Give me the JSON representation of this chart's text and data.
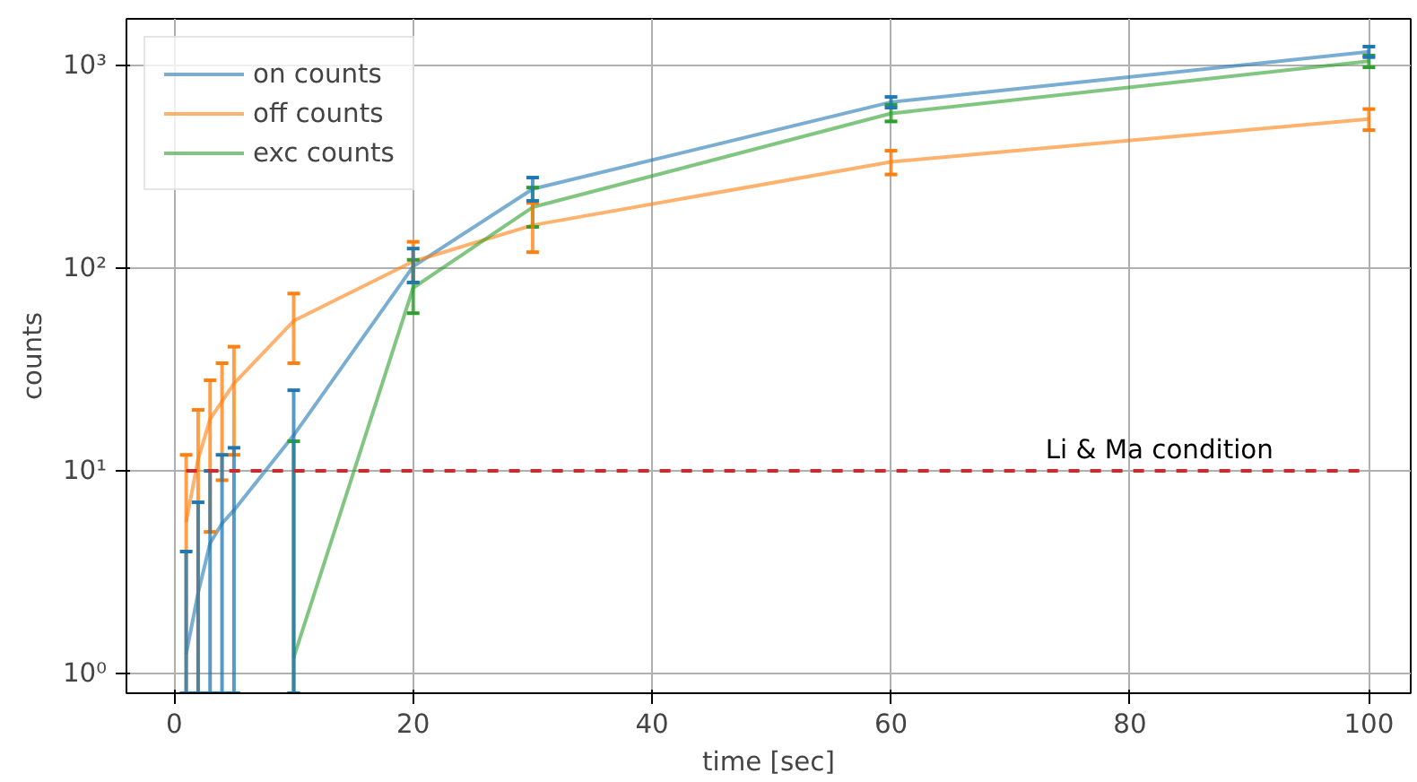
{
  "chart_data": {
    "type": "line",
    "xlabel": "time [sec]",
    "ylabel": "counts",
    "x": [
      1,
      2,
      3,
      4,
      5,
      10,
      20,
      30,
      60,
      100
    ],
    "series": [
      {
        "name": "on counts",
        "color": "#1f77b4",
        "values": [
          1.25,
          2.5,
          4.4,
          5.5,
          6.4,
          15,
          102,
          246,
          660,
          1170
        ],
        "errors": [
          [
            0.8,
            4
          ],
          [
            0.8,
            7
          ],
          [
            0.8,
            10
          ],
          [
            0.8,
            12
          ],
          [
            0.8,
            13
          ],
          [
            0.8,
            25
          ],
          [
            85,
            125
          ],
          [
            215,
            280
          ],
          [
            620,
            700
          ],
          [
            1100,
            1240
          ]
        ]
      },
      {
        "name": "off counts",
        "color": "#ff7f0e",
        "values": [
          5.6,
          11.4,
          18,
          22,
          27,
          55,
          108,
          163,
          335,
          545
        ],
        "errors": [
          [
            0.8,
            12
          ],
          [
            0.8,
            20
          ],
          [
            5,
            28
          ],
          [
            9,
            34
          ],
          [
            12,
            41
          ],
          [
            34,
            75
          ],
          [
            85,
            135
          ],
          [
            120,
            210
          ],
          [
            290,
            380
          ],
          [
            480,
            610
          ]
        ]
      },
      {
        "name": "exc counts",
        "color": "#2ca02c",
        "values": [
          null,
          null,
          null,
          null,
          null,
          1.2,
          80,
          200,
          580,
          1050
        ],
        "errors": [
          null,
          null,
          null,
          null,
          null,
          [
            0.8,
            14
          ],
          [
            60,
            110
          ],
          [
            160,
            250
          ],
          [
            530,
            640
          ],
          [
            980,
            1120
          ]
        ]
      }
    ],
    "log": "y",
    "xlim": [
      -4,
      103.5
    ],
    "ylim": [
      0.8,
      1700
    ],
    "xticks": [
      0,
      20,
      40,
      60,
      80,
      100
    ],
    "yticks": [
      {
        "value": 1,
        "label": "10⁰"
      },
      {
        "value": 10,
        "label": "10¹"
      },
      {
        "value": 100,
        "label": "10²"
      },
      {
        "value": 1000,
        "label": "10³"
      }
    ],
    "ref_lines": [
      {
        "axis": "y",
        "value": 10,
        "label": "Li & Ma condition",
        "color": "#d62728",
        "line_style": "dashed"
      }
    ],
    "grid": true,
    "legend": "top left",
    "marker": "none",
    "line_style": "solid"
  }
}
